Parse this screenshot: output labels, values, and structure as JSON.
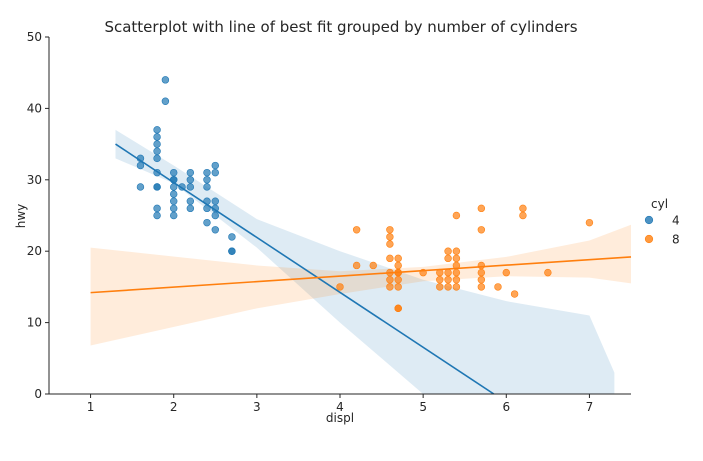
{
  "chart_data": {
    "type": "scatter",
    "title": "Scatterplot with line of best fit grouped by number of cylinders",
    "xlabel": "displ",
    "ylabel": "hwy",
    "xlim": [
      0.5,
      7.5
    ],
    "ylim": [
      0,
      50
    ],
    "xticks": [
      1,
      2,
      3,
      4,
      5,
      6,
      7
    ],
    "yticks": [
      0,
      10,
      20,
      30,
      40,
      50
    ],
    "grid": false,
    "legend": {
      "title": "cyl",
      "placement": "right"
    },
    "series": [
      {
        "name": "4",
        "color": "#1f77b4",
        "points": [
          [
            1.6,
            33
          ],
          [
            1.6,
            32
          ],
          [
            1.6,
            29
          ],
          [
            1.8,
            29
          ],
          [
            1.8,
            31
          ],
          [
            1.8,
            26
          ],
          [
            1.8,
            25
          ],
          [
            1.8,
            29
          ],
          [
            1.8,
            36
          ],
          [
            1.8,
            37
          ],
          [
            1.8,
            35
          ],
          [
            1.8,
            34
          ],
          [
            1.8,
            33
          ],
          [
            1.9,
            44
          ],
          [
            1.9,
            41
          ],
          [
            2.0,
            30
          ],
          [
            2.0,
            29
          ],
          [
            2.0,
            28
          ],
          [
            2.0,
            26
          ],
          [
            2.0,
            27
          ],
          [
            2.0,
            31
          ],
          [
            2.0,
            25
          ],
          [
            2.0,
            30
          ],
          [
            2.1,
            29
          ],
          [
            2.2,
            27
          ],
          [
            2.2,
            26
          ],
          [
            2.2,
            29
          ],
          [
            2.2,
            30
          ],
          [
            2.2,
            31
          ],
          [
            2.4,
            31
          ],
          [
            2.4,
            30
          ],
          [
            2.4,
            27
          ],
          [
            2.4,
            26
          ],
          [
            2.4,
            24
          ],
          [
            2.4,
            29
          ],
          [
            2.5,
            32
          ],
          [
            2.5,
            31
          ],
          [
            2.5,
            25
          ],
          [
            2.5,
            27
          ],
          [
            2.5,
            26
          ],
          [
            2.5,
            23
          ],
          [
            2.7,
            22
          ],
          [
            2.7,
            20
          ],
          [
            2.7,
            20
          ]
        ],
        "fit": {
          "x": [
            1.3,
            5.85
          ],
          "y": [
            35,
            0
          ]
        },
        "ci": {
          "x": [
            1.3,
            2.0,
            3.0,
            4.0,
            5.0,
            6.0,
            7.0,
            7.3
          ],
          "upper": [
            37,
            32,
            24.5,
            20,
            16,
            13,
            11,
            3
          ],
          "lower": [
            33,
            29.5,
            20.5,
            10,
            0,
            0,
            0,
            0
          ]
        }
      },
      {
        "name": "8",
        "color": "#ff7f0e",
        "points": [
          [
            4.0,
            15
          ],
          [
            4.2,
            23
          ],
          [
            4.2,
            18
          ],
          [
            4.4,
            18
          ],
          [
            4.6,
            23
          ],
          [
            4.6,
            22
          ],
          [
            4.6,
            21
          ],
          [
            4.6,
            19
          ],
          [
            4.6,
            17
          ],
          [
            4.6,
            16
          ],
          [
            4.6,
            15
          ],
          [
            4.7,
            19
          ],
          [
            4.7,
            17
          ],
          [
            4.7,
            16
          ],
          [
            4.7,
            15
          ],
          [
            4.7,
            12
          ],
          [
            4.7,
            12
          ],
          [
            4.7,
            17
          ],
          [
            4.7,
            18
          ],
          [
            5.0,
            17
          ],
          [
            5.2,
            17
          ],
          [
            5.2,
            16
          ],
          [
            5.2,
            15
          ],
          [
            5.3,
            20
          ],
          [
            5.3,
            19
          ],
          [
            5.3,
            17
          ],
          [
            5.3,
            16
          ],
          [
            5.3,
            15
          ],
          [
            5.4,
            25
          ],
          [
            5.4,
            18
          ],
          [
            5.4,
            17
          ],
          [
            5.4,
            16
          ],
          [
            5.4,
            15
          ],
          [
            5.4,
            20
          ],
          [
            5.4,
            19
          ],
          [
            5.7,
            18
          ],
          [
            5.7,
            17
          ],
          [
            5.7,
            16
          ],
          [
            5.7,
            15
          ],
          [
            5.7,
            26
          ],
          [
            5.7,
            23
          ],
          [
            5.9,
            15
          ],
          [
            6.0,
            17
          ],
          [
            6.1,
            14
          ],
          [
            6.2,
            26
          ],
          [
            6.2,
            25
          ],
          [
            6.5,
            17
          ],
          [
            7.0,
            24
          ]
        ],
        "fit": {
          "x": [
            1.0,
            7.5
          ],
          "y": [
            14.2,
            19.2
          ]
        },
        "ci": {
          "x": [
            1.0,
            3.0,
            4.0,
            5.0,
            6.0,
            7.0,
            7.5
          ],
          "upper": [
            20.5,
            18,
            17.2,
            17.8,
            19.2,
            21.5,
            23.7
          ],
          "lower": [
            6.8,
            12,
            14,
            15.8,
            16.5,
            16.3,
            15.5
          ]
        }
      }
    ]
  }
}
